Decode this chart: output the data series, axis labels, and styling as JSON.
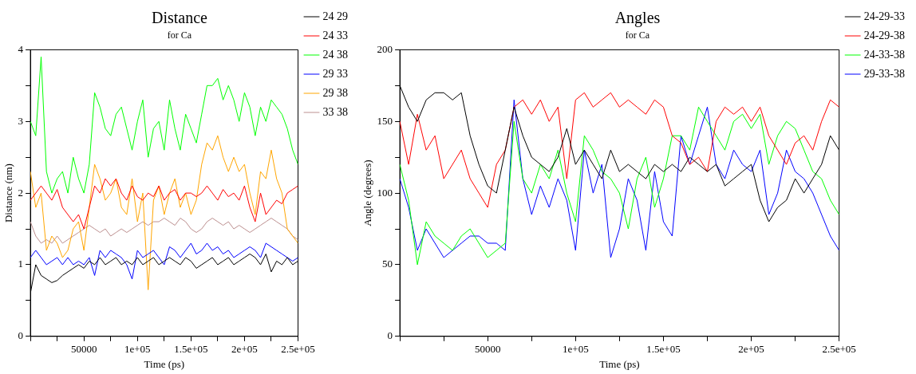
{
  "chart_data": [
    {
      "type": "line",
      "title": "Distance",
      "subtitle": "for Ca",
      "xlabel": "Time (ps)",
      "ylabel": "Distance (nm)",
      "legend": "right",
      "marker": "none",
      "x": [
        0,
        5000,
        10000,
        15000,
        20000,
        25000,
        30000,
        35000,
        40000,
        45000,
        50000,
        55000,
        60000,
        65000,
        70000,
        75000,
        80000,
        85000,
        90000,
        95000,
        100000,
        105000,
        110000,
        115000,
        120000,
        125000,
        130000,
        135000,
        140000,
        145000,
        150000,
        155000,
        160000,
        165000,
        170000,
        175000,
        180000,
        185000,
        190000,
        195000,
        200000,
        205000,
        210000,
        215000,
        220000,
        225000,
        230000,
        235000,
        240000,
        245000,
        250000
      ],
      "xlim": [
        0,
        250000
      ],
      "xticks": [
        {
          "value": 0,
          "label": null
        },
        {
          "value": 25000,
          "label": null
        },
        50000,
        {
          "value": 75000,
          "label": null
        },
        {
          "value": 100000,
          "label": "1e+05"
        },
        {
          "value": 125000,
          "label": null
        },
        {
          "value": 150000,
          "label": "1.5e+05"
        },
        {
          "value": 175000,
          "label": null
        },
        {
          "value": 200000,
          "label": "2e+05"
        },
        {
          "value": 225000,
          "label": null
        },
        {
          "value": 250000,
          "label": "2.5e+05"
        }
      ],
      "ylim": [
        0,
        4
      ],
      "yticks": [
        0,
        {
          "value": 0.5,
          "label": null
        },
        1,
        {
          "value": 1.5,
          "label": null
        },
        2,
        {
          "value": 2.5,
          "label": null
        },
        3,
        {
          "value": 3.5,
          "label": null
        },
        4
      ],
      "series": [
        {
          "name": "24 29",
          "color": "#000000",
          "values": [
            0.6,
            1.0,
            0.85,
            0.8,
            0.75,
            0.78,
            0.85,
            0.9,
            0.95,
            1.0,
            0.95,
            1.05,
            1.0,
            1.1,
            1.0,
            1.05,
            1.1,
            1.0,
            1.05,
            1.0,
            1.1,
            1.0,
            1.05,
            1.1,
            1.0,
            1.05,
            1.1,
            1.05,
            1.0,
            1.1,
            1.05,
            0.95,
            1.0,
            1.05,
            1.1,
            1.0,
            1.05,
            1.1,
            1.0,
            1.05,
            1.1,
            1.15,
            1.1,
            1.0,
            1.15,
            0.9,
            1.05,
            1.0,
            1.1,
            1.0,
            1.05
          ]
        },
        {
          "name": "24 33",
          "color": "#ff0000",
          "values": [
            1.9,
            2.0,
            2.1,
            2.0,
            1.9,
            2.05,
            1.8,
            1.7,
            1.6,
            1.7,
            1.5,
            1.8,
            2.1,
            2.0,
            2.2,
            2.1,
            2.2,
            2.0,
            1.9,
            2.1,
            1.95,
            1.9,
            2.0,
            1.95,
            2.1,
            1.9,
            2.0,
            2.05,
            1.9,
            2.0,
            2.0,
            1.95,
            2.0,
            2.1,
            2.0,
            1.9,
            2.05,
            1.95,
            2.0,
            1.9,
            2.1,
            1.8,
            1.6,
            2.0,
            1.7,
            1.8,
            1.9,
            1.85,
            2.0,
            2.05,
            2.1
          ]
        },
        {
          "name": "24 38",
          "color": "#00ff00",
          "values": [
            3.0,
            2.8,
            3.9,
            2.3,
            2.0,
            2.2,
            2.3,
            2.0,
            2.5,
            2.2,
            2.0,
            2.4,
            3.4,
            3.2,
            2.9,
            2.8,
            3.1,
            3.2,
            2.9,
            2.6,
            3.0,
            3.3,
            2.5,
            2.9,
            3.0,
            2.6,
            3.3,
            2.9,
            2.6,
            3.1,
            2.9,
            2.7,
            3.1,
            3.5,
            3.5,
            3.6,
            3.3,
            3.5,
            3.3,
            3.0,
            3.4,
            3.2,
            2.8,
            3.2,
            3.0,
            3.3,
            3.2,
            3.1,
            2.9,
            2.6,
            2.4
          ]
        },
        {
          "name": "29 33",
          "color": "#0000ff",
          "values": [
            1.1,
            1.2,
            1.1,
            1.0,
            1.05,
            1.1,
            1.0,
            1.1,
            1.0,
            1.05,
            1.0,
            1.1,
            0.85,
            1.2,
            1.1,
            1.2,
            1.15,
            1.1,
            1.0,
            0.8,
            1.2,
            1.1,
            1.15,
            1.2,
            1.1,
            1.0,
            1.25,
            1.2,
            1.1,
            1.2,
            1.3,
            1.15,
            1.2,
            1.3,
            1.2,
            1.25,
            1.15,
            1.2,
            1.1,
            1.15,
            1.2,
            1.25,
            1.2,
            1.1,
            1.3,
            1.25,
            1.2,
            1.15,
            1.1,
            1.05,
            1.1
          ]
        },
        {
          "name": "29 38",
          "color": "#ffa500",
          "values": [
            2.3,
            1.8,
            2.0,
            1.2,
            1.4,
            1.3,
            1.1,
            1.2,
            1.5,
            1.6,
            1.2,
            1.8,
            2.4,
            2.2,
            1.9,
            2.0,
            2.2,
            1.8,
            1.7,
            2.2,
            1.6,
            2.0,
            0.65,
            1.9,
            2.1,
            1.7,
            2.0,
            2.2,
            1.8,
            2.0,
            1.7,
            1.9,
            2.4,
            2.7,
            2.6,
            2.8,
            2.5,
            2.3,
            2.5,
            2.3,
            2.4,
            2.0,
            1.7,
            2.3,
            2.2,
            2.6,
            2.2,
            2.0,
            1.5,
            1.4,
            1.3
          ]
        },
        {
          "name": "33 38",
          "color": "#bc8f8f",
          "values": [
            1.6,
            1.4,
            1.3,
            1.35,
            1.3,
            1.4,
            1.3,
            1.35,
            1.4,
            1.45,
            1.5,
            1.55,
            1.5,
            1.45,
            1.5,
            1.4,
            1.45,
            1.5,
            1.45,
            1.5,
            1.55,
            1.6,
            1.55,
            1.6,
            1.6,
            1.65,
            1.6,
            1.55,
            1.65,
            1.6,
            1.5,
            1.45,
            1.5,
            1.6,
            1.65,
            1.6,
            1.55,
            1.6,
            1.5,
            1.55,
            1.5,
            1.45,
            1.5,
            1.55,
            1.6,
            1.65,
            1.6,
            1.55,
            1.5,
            1.4,
            1.35
          ]
        }
      ]
    },
    {
      "type": "line",
      "title": "Angles",
      "subtitle": "for Ca",
      "xlabel": "Time (ps)",
      "ylabel": "Angle (degrees)",
      "legend": "right",
      "marker": "none",
      "x": [
        0,
        5000,
        10000,
        15000,
        20000,
        25000,
        30000,
        35000,
        40000,
        45000,
        50000,
        55000,
        60000,
        65000,
        70000,
        75000,
        80000,
        85000,
        90000,
        95000,
        100000,
        105000,
        110000,
        115000,
        120000,
        125000,
        130000,
        135000,
        140000,
        145000,
        150000,
        155000,
        160000,
        165000,
        170000,
        175000,
        180000,
        185000,
        190000,
        195000,
        200000,
        205000,
        210000,
        215000,
        220000,
        225000,
        230000,
        235000,
        240000,
        245000,
        250000
      ],
      "xlim": [
        0,
        250000
      ],
      "xticks": [
        {
          "value": 0,
          "label": null
        },
        {
          "value": 25000,
          "label": null
        },
        50000,
        {
          "value": 75000,
          "label": null
        },
        {
          "value": 100000,
          "label": "1e+05"
        },
        {
          "value": 125000,
          "label": null
        },
        {
          "value": 150000,
          "label": "1.5e+05"
        },
        {
          "value": 175000,
          "label": null
        },
        {
          "value": 200000,
          "label": "2e+05"
        },
        {
          "value": 225000,
          "label": null
        },
        {
          "value": 250000,
          "label": "2.5e+05"
        }
      ],
      "ylim": [
        0,
        200
      ],
      "yticks": [
        0,
        {
          "value": 25,
          "label": null
        },
        50,
        {
          "value": 75,
          "label": null
        },
        100,
        {
          "value": 125,
          "label": null
        },
        150,
        {
          "value": 175,
          "label": null
        },
        200
      ],
      "series": [
        {
          "name": "24-29-33",
          "color": "#000000",
          "values": [
            175,
            160,
            150,
            165,
            170,
            170,
            165,
            170,
            140,
            120,
            105,
            100,
            130,
            160,
            140,
            125,
            120,
            115,
            125,
            145,
            120,
            130,
            120,
            110,
            130,
            115,
            120,
            115,
            110,
            120,
            115,
            120,
            115,
            125,
            120,
            115,
            120,
            105,
            110,
            115,
            120,
            95,
            80,
            90,
            95,
            110,
            100,
            110,
            120,
            140,
            130
          ]
        },
        {
          "name": "24-29-38",
          "color": "#ff0000",
          "values": [
            150,
            120,
            155,
            130,
            140,
            110,
            120,
            130,
            110,
            100,
            90,
            120,
            130,
            160,
            165,
            155,
            165,
            150,
            160,
            110,
            165,
            170,
            160,
            165,
            170,
            160,
            165,
            160,
            155,
            165,
            160,
            140,
            135,
            120,
            125,
            115,
            150,
            160,
            155,
            160,
            150,
            160,
            140,
            130,
            120,
            135,
            140,
            130,
            150,
            165,
            160
          ]
        },
        {
          "name": "24-33-38",
          "color": "#00ff00",
          "values": [
            120,
            95,
            50,
            80,
            70,
            65,
            60,
            70,
            75,
            65,
            55,
            60,
            65,
            150,
            110,
            100,
            120,
            110,
            130,
            100,
            80,
            140,
            130,
            115,
            110,
            100,
            75,
            110,
            125,
            90,
            110,
            140,
            140,
            130,
            160,
            150,
            140,
            130,
            150,
            155,
            145,
            155,
            120,
            140,
            150,
            145,
            130,
            115,
            110,
            95,
            85
          ]
        },
        {
          "name": "29-33-38",
          "color": "#0000ff",
          "values": [
            110,
            90,
            60,
            75,
            65,
            55,
            60,
            65,
            70,
            70,
            65,
            65,
            60,
            165,
            110,
            85,
            105,
            90,
            110,
            95,
            60,
            130,
            100,
            120,
            55,
            75,
            110,
            95,
            60,
            115,
            80,
            70,
            140,
            120,
            140,
            160,
            120,
            110,
            130,
            120,
            115,
            130,
            85,
            100,
            130,
            115,
            110,
            100,
            85,
            70,
            60
          ]
        }
      ]
    }
  ]
}
